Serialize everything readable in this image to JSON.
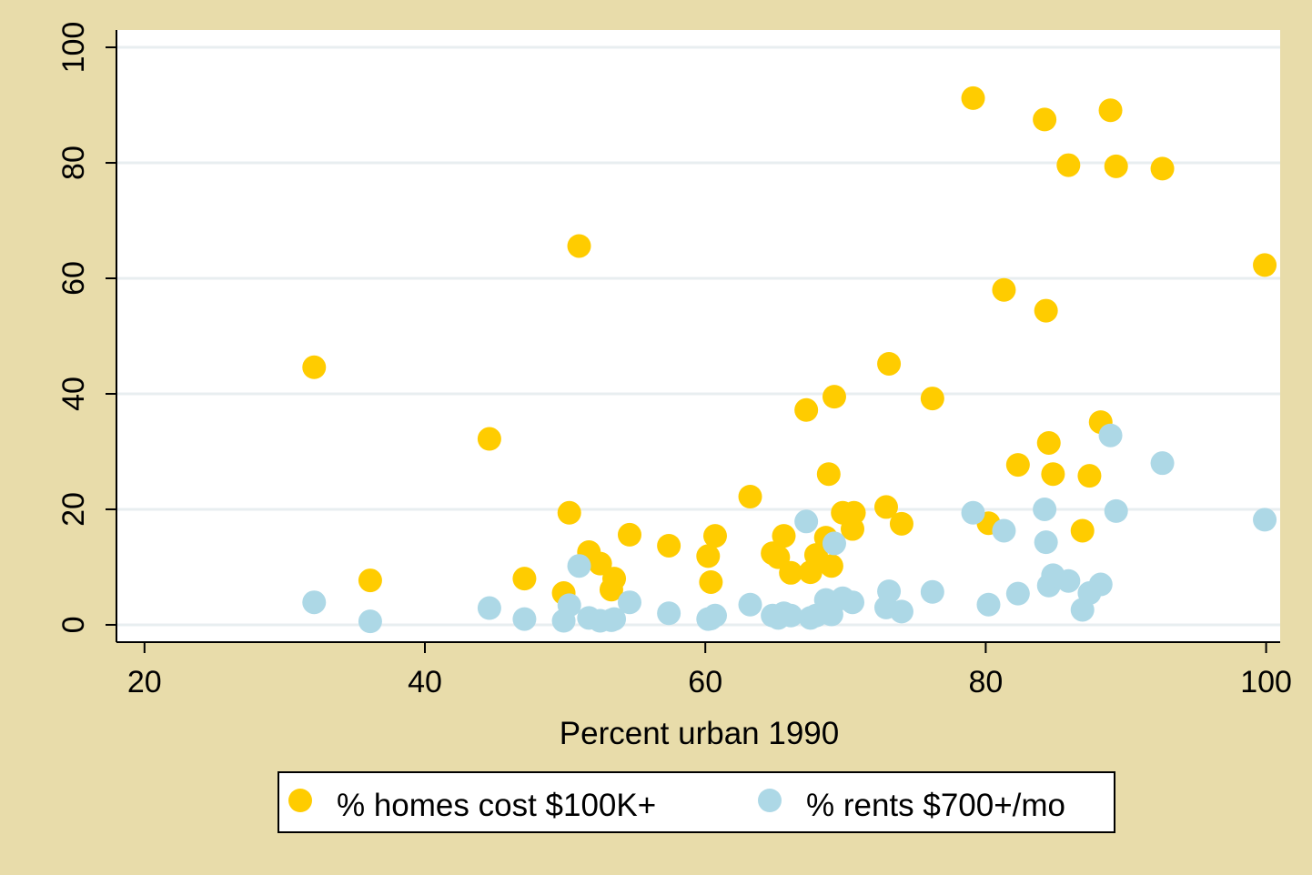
{
  "chart_data": {
    "type": "scatter",
    "xlabel": "Percent urban 1990",
    "ylabel": "",
    "xlim": [
      18,
      101
    ],
    "ylim": [
      -3,
      103
    ],
    "x_ticks": [
      20,
      40,
      60,
      80,
      100
    ],
    "y_ticks": [
      0,
      20,
      40,
      60,
      80,
      100
    ],
    "x_tick_labels": [
      "20",
      "40",
      "60",
      "80",
      "100"
    ],
    "y_tick_labels": [
      "0",
      "20",
      "40",
      "60",
      "80",
      "100"
    ],
    "grid": true,
    "legend_position": "bottom",
    "colors": {
      "background": "#e8dcaa",
      "plot_background": "#ffffff",
      "gridline": "#e8eef0",
      "homes": "#ffcc00",
      "rents": "#add8e6"
    },
    "series": [
      {
        "name": "% homes cost $100K+",
        "points": [
          [
            32.1,
            44.6
          ],
          [
            36.1,
            7.7
          ],
          [
            44.6,
            32.2
          ],
          [
            47.1,
            8.0
          ],
          [
            49.9,
            5.5
          ],
          [
            50.3,
            19.4
          ],
          [
            51.0,
            65.6
          ],
          [
            51.7,
            12.6
          ],
          [
            52.5,
            10.6
          ],
          [
            53.3,
            6.1
          ],
          [
            53.5,
            8.0
          ],
          [
            54.6,
            15.6
          ],
          [
            57.4,
            13.7
          ],
          [
            60.2,
            11.9
          ],
          [
            60.4,
            7.4
          ],
          [
            60.7,
            15.4
          ],
          [
            63.2,
            22.2
          ],
          [
            64.8,
            12.4
          ],
          [
            65.2,
            11.7
          ],
          [
            65.6,
            15.4
          ],
          [
            66.1,
            9.0
          ],
          [
            67.2,
            37.2
          ],
          [
            67.5,
            9.1
          ],
          [
            67.9,
            12.1
          ],
          [
            68.6,
            15.1
          ],
          [
            68.8,
            26.1
          ],
          [
            69.0,
            10.2
          ],
          [
            69.2,
            39.5
          ],
          [
            69.8,
            19.4
          ],
          [
            70.5,
            16.6
          ],
          [
            70.6,
            19.4
          ],
          [
            72.9,
            20.4
          ],
          [
            73.1,
            45.2
          ],
          [
            74.0,
            17.5
          ],
          [
            76.2,
            39.2
          ],
          [
            79.1,
            91.2
          ],
          [
            80.2,
            17.6
          ],
          [
            81.3,
            58.0
          ],
          [
            82.3,
            27.7
          ],
          [
            84.2,
            87.5
          ],
          [
            84.3,
            54.4
          ],
          [
            84.5,
            31.5
          ],
          [
            84.8,
            26.1
          ],
          [
            85.9,
            79.6
          ],
          [
            86.9,
            16.3
          ],
          [
            87.4,
            25.8
          ],
          [
            88.2,
            35.1
          ],
          [
            88.9,
            89.1
          ],
          [
            89.3,
            79.4
          ],
          [
            92.6,
            79.0
          ],
          [
            99.9,
            62.3
          ]
        ]
      },
      {
        "name": "% rents $700+/mo",
        "points": [
          [
            32.1,
            3.9
          ],
          [
            36.1,
            0.6
          ],
          [
            44.6,
            2.9
          ],
          [
            47.1,
            1.0
          ],
          [
            49.9,
            0.7
          ],
          [
            50.3,
            3.4
          ],
          [
            51.0,
            10.2
          ],
          [
            51.7,
            1.2
          ],
          [
            52.5,
            0.7
          ],
          [
            53.3,
            0.8
          ],
          [
            53.5,
            1.0
          ],
          [
            54.6,
            3.9
          ],
          [
            57.4,
            2.0
          ],
          [
            60.2,
            1.0
          ],
          [
            60.4,
            1.1
          ],
          [
            60.7,
            1.6
          ],
          [
            63.2,
            3.5
          ],
          [
            64.8,
            1.6
          ],
          [
            65.2,
            1.2
          ],
          [
            65.6,
            2.0
          ],
          [
            66.1,
            1.6
          ],
          [
            67.2,
            17.9
          ],
          [
            67.5,
            1.2
          ],
          [
            67.9,
            1.6
          ],
          [
            68.6,
            4.3
          ],
          [
            68.8,
            2.0
          ],
          [
            69.0,
            1.8
          ],
          [
            69.2,
            14.1
          ],
          [
            69.8,
            4.6
          ],
          [
            70.5,
            3.9
          ],
          [
            72.9,
            3.0
          ],
          [
            73.1,
            5.8
          ],
          [
            74.0,
            2.3
          ],
          [
            76.2,
            5.7
          ],
          [
            79.1,
            19.4
          ],
          [
            80.2,
            3.5
          ],
          [
            81.3,
            16.3
          ],
          [
            82.3,
            5.4
          ],
          [
            84.2,
            20.0
          ],
          [
            84.3,
            14.3
          ],
          [
            84.5,
            6.8
          ],
          [
            84.8,
            8.6
          ],
          [
            85.9,
            7.6
          ],
          [
            86.9,
            2.6
          ],
          [
            87.4,
            5.5
          ],
          [
            88.2,
            7.0
          ],
          [
            88.9,
            32.8
          ],
          [
            89.3,
            19.7
          ],
          [
            92.6,
            28.0
          ],
          [
            99.9,
            18.2
          ]
        ]
      }
    ]
  }
}
